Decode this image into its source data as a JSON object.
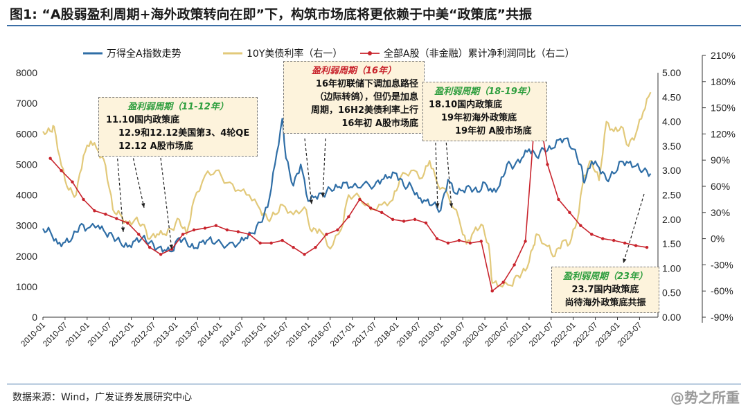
{
  "title": "图1:   “A股弱盈利周期+海外政策转向在即”下，构筑市场底将更依赖于中美“政策底”共振",
  "source": "数据来源：Wind，广发证券发展研究中心",
  "watermark": "@势之所重",
  "colors": {
    "wind_a": "#2f6ea6",
    "bond10y": "#e2c97a",
    "profit": "#c8232c",
    "rule": "#3b6ea5"
  },
  "callouts": [
    {
      "title": "盈利弱周期（11-12年）",
      "title_color": "green",
      "lines": [
        "11.10国内政策底",
        "12.9和12.12美国第3、4轮QE",
        "12.12 A股市场底"
      ]
    },
    {
      "title": "盈利弱周期（16年）",
      "title_color": "red",
      "lines": [
        "16年初联储下调加息路径",
        "（边际转鸽），但仍是加息",
        "周期，16H2美债利率上行",
        "16年初 A股市场底"
      ]
    },
    {
      "title": "盈利弱周期（18-19年）",
      "title_color": "green",
      "lines": [
        "18.10国内政策底",
        "19年初海外政策底",
        "19年初 A股市场底"
      ]
    },
    {
      "title": "盈利弱周期（23年）",
      "title_color": "green",
      "lines": [
        "23.7国内政策底",
        "尚待海外政策底共振"
      ]
    }
  ],
  "chart_data": {
    "type": "line",
    "legend": [
      "万得全A指数走势",
      "10Y美债利率（右一）",
      "全部A股（非金融）累计净利润同比（右二）"
    ],
    "x_ticks": [
      "2010-01",
      "2010-07",
      "2011-01",
      "2011-07",
      "2012-01",
      "2012-07",
      "2013-01",
      "2013-07",
      "2014-01",
      "2014-07",
      "2015-01",
      "2015-07",
      "2016-01",
      "2016-07",
      "2017-01",
      "2017-07",
      "2018-01",
      "2018-07",
      "2019-01",
      "2019-07",
      "2020-01",
      "2020-07",
      "2021-01",
      "2021-07",
      "2022-01",
      "2022-07",
      "2023-01",
      "2023-07"
    ],
    "y_left": {
      "range": [
        0,
        8000
      ],
      "ticks": [
        "0",
        "1000",
        "2000",
        "3000",
        "4000",
        "5000",
        "6000",
        "7000",
        "8000"
      ]
    },
    "y_right1": {
      "range": [
        0,
        5
      ],
      "ticks": [
        "0.00",
        "0.50",
        "1.00",
        "1.50",
        "2.00",
        "2.50",
        "3.00",
        "3.50",
        "4.00",
        "4.50",
        "5.00"
      ]
    },
    "y_right2": {
      "range": [
        -90,
        210
      ],
      "ticks": [
        "-90%",
        "-60%",
        "-30%",
        "0%",
        "30%",
        "60%",
        "90%",
        "120%",
        "150%",
        "180%",
        "210%"
      ]
    },
    "series": [
      {
        "name": "万得全A指数走势",
        "axis": "left",
        "color": "#2f6ea6",
        "points": [
          [
            "2010-01",
            2900
          ],
          [
            "2010-03",
            2800
          ],
          [
            "2010-05",
            2400
          ],
          [
            "2010-07",
            2450
          ],
          [
            "2010-09",
            2600
          ],
          [
            "2010-11",
            3000
          ],
          [
            "2011-01",
            2900
          ],
          [
            "2011-04",
            3000
          ],
          [
            "2011-06",
            2750
          ],
          [
            "2011-08",
            2650
          ],
          [
            "2011-10",
            2450
          ],
          [
            "2011-12",
            2300
          ],
          [
            "2012-02",
            2500
          ],
          [
            "2012-04",
            2600
          ],
          [
            "2012-06",
            2450
          ],
          [
            "2012-08",
            2250
          ],
          [
            "2012-10",
            2200
          ],
          [
            "2012-12",
            2150
          ],
          [
            "2013-02",
            2600
          ],
          [
            "2013-04",
            2450
          ],
          [
            "2013-06",
            2250
          ],
          [
            "2013-08",
            2450
          ],
          [
            "2013-10",
            2550
          ],
          [
            "2013-12",
            2450
          ],
          [
            "2014-03",
            2350
          ],
          [
            "2014-06",
            2400
          ],
          [
            "2014-08",
            2600
          ],
          [
            "2014-10",
            2750
          ],
          [
            "2014-12",
            3100
          ],
          [
            "2015-02",
            3600
          ],
          [
            "2015-04",
            5000
          ],
          [
            "2015-06",
            6500
          ],
          [
            "2015-07",
            5200
          ],
          [
            "2015-09",
            4300
          ],
          [
            "2015-11",
            5000
          ],
          [
            "2016-01",
            3800
          ],
          [
            "2016-03",
            3950
          ],
          [
            "2016-05",
            4000
          ],
          [
            "2016-07",
            4200
          ],
          [
            "2016-09",
            4250
          ],
          [
            "2016-11",
            4400
          ],
          [
            "2017-01",
            4250
          ],
          [
            "2017-04",
            4350
          ],
          [
            "2017-07",
            4300
          ],
          [
            "2017-09",
            4500
          ],
          [
            "2017-11",
            4600
          ],
          [
            "2018-01",
            4700
          ],
          [
            "2018-03",
            4300
          ],
          [
            "2018-05",
            4300
          ],
          [
            "2018-07",
            3900
          ],
          [
            "2018-09",
            3800
          ],
          [
            "2018-11",
            3700
          ],
          [
            "2019-01",
            3500
          ],
          [
            "2019-03",
            4500
          ],
          [
            "2019-05",
            4050
          ],
          [
            "2019-07",
            4150
          ],
          [
            "2019-09",
            4250
          ],
          [
            "2019-11",
            4100
          ],
          [
            "2020-01",
            4400
          ],
          [
            "2020-03",
            4100
          ],
          [
            "2020-05",
            4300
          ],
          [
            "2020-07",
            5000
          ],
          [
            "2020-09",
            4950
          ],
          [
            "2020-11",
            5200
          ],
          [
            "2021-01",
            5500
          ],
          [
            "2021-03",
            5250
          ],
          [
            "2021-05",
            5500
          ],
          [
            "2021-07",
            5500
          ],
          [
            "2021-09",
            5800
          ],
          [
            "2021-11",
            5850
          ],
          [
            "2022-01",
            5500
          ],
          [
            "2022-03",
            5000
          ],
          [
            "2022-04",
            4400
          ],
          [
            "2022-06",
            5100
          ],
          [
            "2022-08",
            4900
          ],
          [
            "2022-10",
            4500
          ],
          [
            "2022-12",
            4700
          ],
          [
            "2023-02",
            5100
          ],
          [
            "2023-04",
            5050
          ],
          [
            "2023-06",
            4950
          ],
          [
            "2023-08",
            4800
          ],
          [
            "2023-10",
            4700
          ]
        ]
      },
      {
        "name": "10Y美债利率（右一）",
        "axis": "right1",
        "color": "#e2c97a",
        "points": [
          [
            "2010-01",
            3.8
          ],
          [
            "2010-03",
            3.8
          ],
          [
            "2010-04",
            3.9
          ],
          [
            "2010-06",
            3.1
          ],
          [
            "2010-08",
            2.6
          ],
          [
            "2010-10",
            2.5
          ],
          [
            "2010-12",
            3.3
          ],
          [
            "2011-02",
            3.6
          ],
          [
            "2011-04",
            3.4
          ],
          [
            "2011-06",
            3.1
          ],
          [
            "2011-08",
            2.2
          ],
          [
            "2011-10",
            2.1
          ],
          [
            "2011-12",
            1.9
          ],
          [
            "2012-02",
            2.0
          ],
          [
            "2012-04",
            1.9
          ],
          [
            "2012-06",
            1.6
          ],
          [
            "2012-08",
            1.7
          ],
          [
            "2012-10",
            1.7
          ],
          [
            "2012-12",
            1.8
          ],
          [
            "2013-02",
            2.0
          ],
          [
            "2013-04",
            1.7
          ],
          [
            "2013-06",
            2.4
          ],
          [
            "2013-09",
            2.9
          ],
          [
            "2013-12",
            3.0
          ],
          [
            "2014-03",
            2.75
          ],
          [
            "2014-06",
            2.6
          ],
          [
            "2014-09",
            2.5
          ],
          [
            "2014-12",
            2.2
          ],
          [
            "2015-02",
            2.0
          ],
          [
            "2015-04",
            2.1
          ],
          [
            "2015-06",
            2.3
          ],
          [
            "2015-09",
            2.1
          ],
          [
            "2015-12",
            2.25
          ],
          [
            "2016-02",
            1.75
          ],
          [
            "2016-04",
            1.8
          ],
          [
            "2016-07",
            1.4
          ],
          [
            "2016-10",
            1.8
          ],
          [
            "2016-12",
            2.5
          ],
          [
            "2017-03",
            2.45
          ],
          [
            "2017-06",
            2.2
          ],
          [
            "2017-09",
            2.3
          ],
          [
            "2017-12",
            2.4
          ],
          [
            "2018-02",
            2.85
          ],
          [
            "2018-05",
            3.0
          ],
          [
            "2018-08",
            2.85
          ],
          [
            "2018-10",
            3.2
          ],
          [
            "2018-12",
            2.75
          ],
          [
            "2019-03",
            2.5
          ],
          [
            "2019-06",
            2.0
          ],
          [
            "2019-08",
            1.5
          ],
          [
            "2019-10",
            1.75
          ],
          [
            "2019-12",
            1.9
          ],
          [
            "2020-02",
            1.5
          ],
          [
            "2020-03",
            0.7
          ],
          [
            "2020-05",
            0.65
          ],
          [
            "2020-08",
            0.65
          ],
          [
            "2020-10",
            0.85
          ],
          [
            "2020-12",
            0.95
          ],
          [
            "2021-02",
            1.4
          ],
          [
            "2021-03",
            1.7
          ],
          [
            "2021-06",
            1.45
          ],
          [
            "2021-08",
            1.25
          ],
          [
            "2021-10",
            1.55
          ],
          [
            "2021-12",
            1.5
          ],
          [
            "2022-02",
            1.95
          ],
          [
            "2022-04",
            2.9
          ],
          [
            "2022-06",
            3.2
          ],
          [
            "2022-08",
            2.8
          ],
          [
            "2022-10",
            4.0
          ],
          [
            "2022-12",
            3.8
          ],
          [
            "2023-02",
            3.9
          ],
          [
            "2023-04",
            3.5
          ],
          [
            "2023-06",
            3.75
          ],
          [
            "2023-08",
            4.2
          ],
          [
            "2023-10",
            4.6
          ]
        ]
      },
      {
        "name": "全部A股（非金融）累计净利润同比（右二）",
        "axis": "right2",
        "color": "#c8232c",
        "points": [
          [
            "2010-03",
            92
          ],
          [
            "2010-06",
            78
          ],
          [
            "2010-09",
            65
          ],
          [
            "2010-12",
            45
          ],
          [
            "2011-03",
            32
          ],
          [
            "2011-06",
            28
          ],
          [
            "2011-09",
            23
          ],
          [
            "2011-12",
            18
          ],
          [
            "2012-03",
            5
          ],
          [
            "2012-06",
            -10
          ],
          [
            "2012-09",
            -18
          ],
          [
            "2012-12",
            -12
          ],
          [
            "2013-03",
            5
          ],
          [
            "2013-06",
            10
          ],
          [
            "2013-09",
            12
          ],
          [
            "2013-12",
            15
          ],
          [
            "2014-03",
            10
          ],
          [
            "2014-06",
            8
          ],
          [
            "2014-09",
            5
          ],
          [
            "2014-12",
            -5
          ],
          [
            "2015-03",
            -5
          ],
          [
            "2015-06",
            -2
          ],
          [
            "2015-09",
            -10
          ],
          [
            "2015-12",
            -18
          ],
          [
            "2016-03",
            -10
          ],
          [
            "2016-06",
            5
          ],
          [
            "2016-09",
            10
          ],
          [
            "2016-12",
            25
          ],
          [
            "2017-03",
            45
          ],
          [
            "2017-06",
            35
          ],
          [
            "2017-09",
            30
          ],
          [
            "2017-12",
            22
          ],
          [
            "2018-03",
            20
          ],
          [
            "2018-06",
            22
          ],
          [
            "2018-09",
            18
          ],
          [
            "2018-12",
            0
          ],
          [
            "2019-03",
            -5
          ],
          [
            "2019-06",
            -2
          ],
          [
            "2019-09",
            -5
          ],
          [
            "2019-12",
            -3
          ],
          [
            "2020-03",
            -60
          ],
          [
            "2020-06",
            -50
          ],
          [
            "2020-09",
            -30
          ],
          [
            "2020-12",
            -3
          ],
          [
            "2021-03",
            162
          ],
          [
            "2021-06",
            85
          ],
          [
            "2021-09",
            45
          ],
          [
            "2021-12",
            30
          ],
          [
            "2022-03",
            15
          ],
          [
            "2022-06",
            5
          ],
          [
            "2022-09",
            0
          ],
          [
            "2022-12",
            -2
          ],
          [
            "2023-03",
            -5
          ],
          [
            "2023-06",
            -8
          ],
          [
            "2023-09",
            -10
          ]
        ]
      }
    ]
  }
}
